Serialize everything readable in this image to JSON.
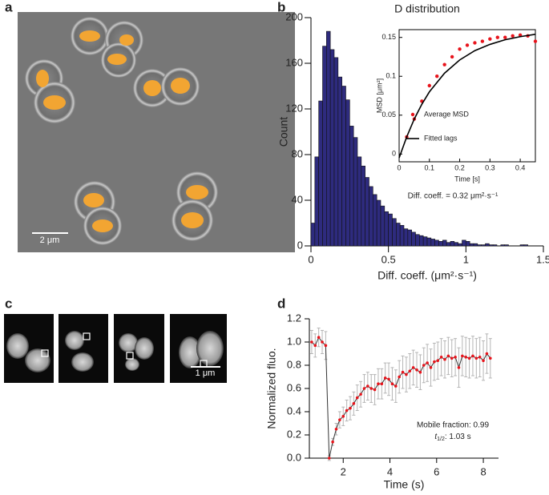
{
  "figure": {
    "panel_labels": [
      "a",
      "b",
      "c",
      "d"
    ],
    "scale_bars": [
      "2 μm",
      "1 μm"
    ]
  },
  "chart_data": [
    {
      "type": "histogram",
      "title": "D distribution",
      "x_label": "Diff. coeff. (μm²·s⁻¹)",
      "y_label": "Count",
      "annotation": "Diff. coeff. = 0.32 μm²·s⁻¹",
      "color": "#2e2b7e",
      "bins": [
        0,
        0.025,
        0.05,
        0.075,
        0.1,
        0.125,
        0.15,
        0.175,
        0.2,
        0.225,
        0.25,
        0.275,
        0.3,
        0.325,
        0.35,
        0.375,
        0.4,
        0.425,
        0.45,
        0.475,
        0.5,
        0.525,
        0.55,
        0.575,
        0.6,
        0.625,
        0.65,
        0.675,
        0.7,
        0.725,
        0.75,
        0.775,
        0.8,
        0.825,
        0.85,
        0.875,
        0.9,
        0.925,
        0.95,
        0.975,
        1,
        1.025,
        1.05,
        1.075,
        1.1,
        1.125,
        1.15,
        1.175,
        1.2,
        1.225,
        1.25,
        1.275,
        1.3,
        1.325,
        1.35,
        1.375,
        1.4
      ],
      "counts": [
        20,
        78,
        127,
        175,
        188,
        172,
        165,
        148,
        140,
        128,
        105,
        95,
        78,
        70,
        60,
        52,
        45,
        40,
        35,
        30,
        28,
        24,
        20,
        18,
        15,
        14,
        12,
        10,
        9,
        8,
        7,
        6,
        5,
        4,
        5,
        3,
        4,
        3,
        2,
        5,
        4,
        2,
        2,
        1,
        1,
        2,
        1,
        1,
        0,
        1,
        1,
        0,
        0,
        0,
        1,
        1
      ],
      "xlim": [
        0,
        1.5
      ],
      "xticks": [
        0,
        0.5,
        1,
        1.5
      ],
      "ylim": [
        0,
        200
      ],
      "yticks": [
        0,
        40,
        80,
        120,
        160,
        200
      ]
    },
    {
      "type": "line",
      "x_label": "Time [s]",
      "y_label": "MSD [μm²]",
      "series": [
        {
          "name": "Average MSD",
          "type": "scatter",
          "color": "#e8141c",
          "x": [
            0.025,
            0.05,
            0.075,
            0.1,
            0.125,
            0.15,
            0.175,
            0.2,
            0.225,
            0.25,
            0.275,
            0.3,
            0.325,
            0.35,
            0.375,
            0.4,
            0.425,
            0.45
          ],
          "values": [
            0.022,
            0.045,
            0.068,
            0.088,
            0.1,
            0.115,
            0.125,
            0.135,
            0.14,
            0.143,
            0.145,
            0.148,
            0.15,
            0.15,
            0.152,
            0.153,
            0.152,
            0.145
          ]
        },
        {
          "name": "Fitted lags",
          "type": "line",
          "color": "#000000",
          "x": [
            0,
            0.025,
            0.05,
            0.075,
            0.1,
            0.15,
            0.2,
            0.25,
            0.3,
            0.35,
            0.4,
            0.45
          ],
          "values": [
            -0.005,
            0.022,
            0.045,
            0.064,
            0.08,
            0.104,
            0.121,
            0.133,
            0.141,
            0.147,
            0.151,
            0.154
          ]
        }
      ],
      "xlim": [
        0,
        0.45
      ],
      "xticks": [
        0,
        0.1,
        0.2,
        0.3,
        0.4
      ],
      "ylim": [
        -0.01,
        0.16
      ],
      "yticks": [
        0,
        0.05,
        0.1,
        0.15
      ]
    },
    {
      "type": "line",
      "x_label": "Time (s)",
      "y_label": "Normalized fluo.",
      "annotations": {
        "mobile": "Mobile fraction: 0.99",
        "half_time": {
          "symbol": "t",
          "subscript": "1/2",
          "text": ": 1.03 s"
        }
      },
      "series": [
        {
          "color": "#e8141c",
          "line_color": "#333333",
          "error_color": "#b5b5b5",
          "x": [
            0.65,
            0.8,
            0.95,
            1.1,
            1.25,
            1.4,
            1.55,
            1.7,
            1.85,
            2.0,
            2.15,
            2.3,
            2.45,
            2.6,
            2.75,
            2.9,
            3.05,
            3.2,
            3.35,
            3.5,
            3.65,
            3.8,
            3.95,
            4.1,
            4.25,
            4.4,
            4.55,
            4.7,
            4.85,
            5.0,
            5.15,
            5.3,
            5.45,
            5.6,
            5.75,
            5.9,
            6.05,
            6.2,
            6.35,
            6.5,
            6.65,
            6.8,
            6.95,
            7.1,
            7.25,
            7.4,
            7.55,
            7.7,
            7.85,
            8.0,
            8.15,
            8.3
          ],
          "values": [
            1.0,
            0.97,
            1.04,
            1.0,
            0.97,
            0.0,
            0.14,
            0.25,
            0.33,
            0.36,
            0.41,
            0.43,
            0.47,
            0.52,
            0.55,
            0.6,
            0.62,
            0.6,
            0.59,
            0.64,
            0.64,
            0.69,
            0.68,
            0.64,
            0.62,
            0.7,
            0.74,
            0.72,
            0.75,
            0.78,
            0.76,
            0.74,
            0.8,
            0.82,
            0.78,
            0.83,
            0.84,
            0.87,
            0.85,
            0.88,
            0.86,
            0.87,
            0.78,
            0.88,
            0.87,
            0.86,
            0.88,
            0.86,
            0.87,
            0.84,
            0.9,
            0.86
          ],
          "errors": [
            0.1,
            0.1,
            0.08,
            0.1,
            0.12,
            0.02,
            0.03,
            0.05,
            0.07,
            0.08,
            0.09,
            0.1,
            0.1,
            0.11,
            0.11,
            0.12,
            0.12,
            0.12,
            0.13,
            0.13,
            0.13,
            0.13,
            0.14,
            0.14,
            0.14,
            0.14,
            0.14,
            0.15,
            0.15,
            0.15,
            0.15,
            0.15,
            0.15,
            0.16,
            0.16,
            0.16,
            0.16,
            0.16,
            0.16,
            0.16,
            0.16,
            0.16,
            0.17,
            0.17,
            0.17,
            0.17,
            0.17,
            0.17,
            0.17,
            0.17,
            0.17,
            0.17
          ]
        }
      ],
      "xlim": [
        0.55,
        8.65
      ],
      "xticks": [
        2,
        4,
        6,
        8
      ],
      "ylim": [
        0,
        1.2
      ],
      "yticks": [
        {
          "value": 0,
          "label": "0.0"
        },
        0.2,
        0.4,
        0.6,
        0.8,
        {
          "value": 1,
          "label": "1.0"
        },
        1.2
      ]
    }
  ]
}
